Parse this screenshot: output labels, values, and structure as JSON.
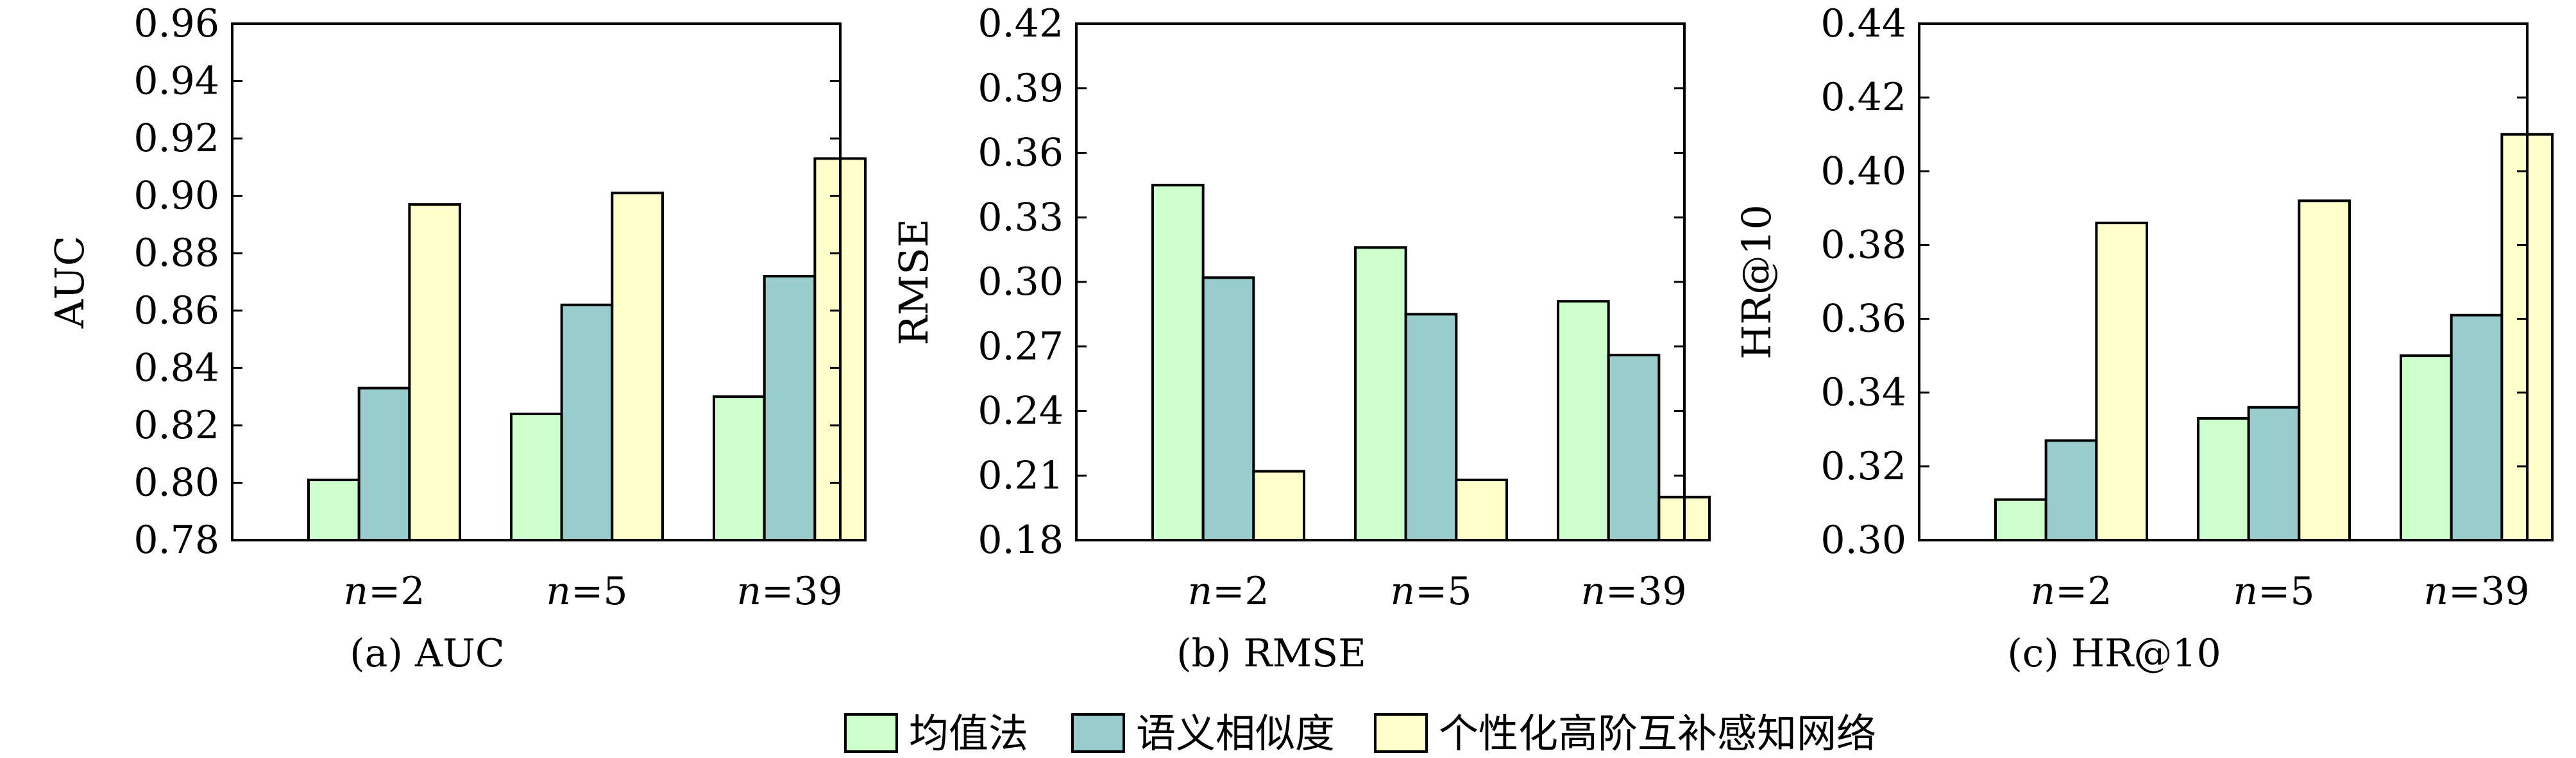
{
  "legend": {
    "entries": [
      {
        "name": "均值法",
        "color": "#ccffcc"
      },
      {
        "name": "语义相似度",
        "color": "#99cccc"
      },
      {
        "name": "个性化高阶互补感知网络",
        "color": "#ffffcc"
      }
    ]
  },
  "chart_data": [
    {
      "type": "bar",
      "caption": "(a) AUC",
      "ylabel": "AUC",
      "xlabel": "",
      "categories": [
        "n=2",
        "n=5",
        "n=39"
      ],
      "ylim": [
        0.78,
        0.96
      ],
      "yticks": [
        "0.78",
        "0.80",
        "0.82",
        "0.84",
        "0.86",
        "0.88",
        "0.90",
        "0.92",
        "0.94",
        "0.96"
      ],
      "series": [
        {
          "name": "均值法",
          "values": [
            0.801,
            0.824,
            0.83
          ]
        },
        {
          "name": "语义相似度",
          "values": [
            0.833,
            0.862,
            0.872
          ]
        },
        {
          "name": "个性化高阶互补感知网络",
          "values": [
            0.897,
            0.901,
            0.913
          ]
        }
      ]
    },
    {
      "type": "bar",
      "caption": "(b) RMSE",
      "ylabel": "RMSE",
      "xlabel": "",
      "categories": [
        "n=2",
        "n=5",
        "n=39"
      ],
      "ylim": [
        0.18,
        0.42
      ],
      "yticks": [
        "0.18",
        "0.21",
        "0.24",
        "0.27",
        "0.30",
        "0.33",
        "0.36",
        "0.39",
        "0.42"
      ],
      "series": [
        {
          "name": "均值法",
          "values": [
            0.345,
            0.316,
            0.291
          ]
        },
        {
          "name": "语义相似度",
          "values": [
            0.302,
            0.285,
            0.266
          ]
        },
        {
          "name": "个性化高阶互补感知网络",
          "values": [
            0.212,
            0.208,
            0.2
          ]
        }
      ]
    },
    {
      "type": "bar",
      "caption": "(c) HR@10",
      "ylabel": "HR@10",
      "xlabel": "",
      "categories": [
        "n=2",
        "n=5",
        "n=39"
      ],
      "ylim": [
        0.3,
        0.44
      ],
      "yticks": [
        "0.30",
        "0.32",
        "0.34",
        "0.36",
        "0.38",
        "0.40",
        "0.42",
        "0.44"
      ],
      "series": [
        {
          "name": "均值法",
          "values": [
            0.311,
            0.333,
            0.35
          ]
        },
        {
          "name": "语义相似度",
          "values": [
            0.327,
            0.336,
            0.361
          ]
        },
        {
          "name": "个性化高阶互补感知网络",
          "values": [
            0.386,
            0.392,
            0.41
          ]
        }
      ]
    }
  ]
}
